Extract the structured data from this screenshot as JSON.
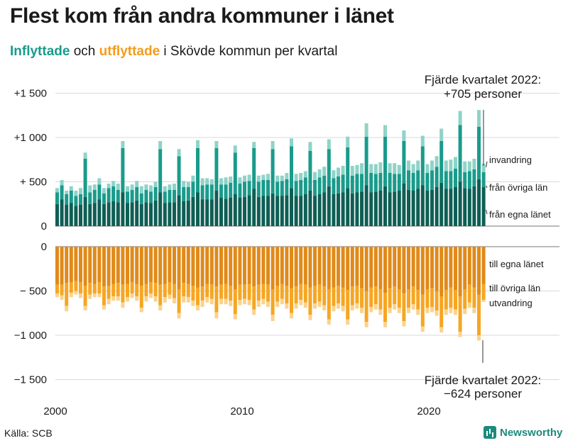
{
  "title": "Flest kom från andra kommuner i länet",
  "subtitle": {
    "in_word": "Inflyttade",
    "mid": " och ",
    "out_word": "utflyttade",
    "rest": " i Skövde kommun per kvartal"
  },
  "source": "Källa: SCB",
  "brand": "Newsworthy",
  "colors": {
    "in_own_county": "#0f5e55",
    "in_other_county": "#1a9b8b",
    "in_immigration": "#8fd3c8",
    "out_own_county": "#e08a1a",
    "out_other_county": "#f6a623",
    "out_emigration": "#fad38e",
    "grid": "#d9d9d9"
  },
  "chart_data": {
    "type": "bar",
    "stacked": true,
    "unit": "personer",
    "x_tick_labels": [
      "2000",
      "2010",
      "2020"
    ],
    "top_panel": {
      "y_ticks": [
        0,
        500,
        1000,
        1500
      ],
      "y_tick_labels": [
        "0",
        "+  500",
        "+1 000",
        "+1 500"
      ],
      "ylim": [
        0,
        1500
      ],
      "series_names": [
        "från egna länet",
        "från övriga län",
        "invandring"
      ],
      "annotation": {
        "line1": "Fjärde kvartalet 2022:",
        "line2": "+705 personer"
      }
    },
    "bottom_panel": {
      "y_ticks": [
        0,
        -500,
        -1000,
        -1500
      ],
      "y_tick_labels": [
        "0",
        "−  500",
        "−1 000",
        "−1 500"
      ],
      "ylim": [
        -1500,
        0
      ],
      "series_names": [
        "till egna länet",
        "till övriga län",
        "utvandring"
      ],
      "annotation": {
        "line1": "Fjärde kvartalet 2022:",
        "line2": "−624 personer"
      }
    },
    "quarters": [
      "2000Q1",
      "2000Q2",
      "2000Q3",
      "2000Q4",
      "2001Q1",
      "2001Q2",
      "2001Q3",
      "2001Q4",
      "2002Q1",
      "2002Q2",
      "2002Q3",
      "2002Q4",
      "2003Q1",
      "2003Q2",
      "2003Q3",
      "2003Q4",
      "2004Q1",
      "2004Q2",
      "2004Q3",
      "2004Q4",
      "2005Q1",
      "2005Q2",
      "2005Q3",
      "2005Q4",
      "2006Q1",
      "2006Q2",
      "2006Q3",
      "2006Q4",
      "2007Q1",
      "2007Q2",
      "2007Q3",
      "2007Q4",
      "2008Q1",
      "2008Q2",
      "2008Q3",
      "2008Q4",
      "2009Q1",
      "2009Q2",
      "2009Q3",
      "2009Q4",
      "2010Q1",
      "2010Q2",
      "2010Q3",
      "2010Q4",
      "2011Q1",
      "2011Q2",
      "2011Q3",
      "2011Q4",
      "2012Q1",
      "2012Q2",
      "2012Q3",
      "2012Q4",
      "2013Q1",
      "2013Q2",
      "2013Q3",
      "2013Q4",
      "2014Q1",
      "2014Q2",
      "2014Q3",
      "2014Q4",
      "2015Q1",
      "2015Q2",
      "2015Q3",
      "2015Q4",
      "2016Q1",
      "2016Q2",
      "2016Q3",
      "2016Q4",
      "2017Q1",
      "2017Q2",
      "2017Q3",
      "2017Q4",
      "2018Q1",
      "2018Q2",
      "2018Q3",
      "2018Q4",
      "2019Q1",
      "2019Q2",
      "2019Q3",
      "2019Q4",
      "2020Q1",
      "2020Q2",
      "2020Q3",
      "2020Q4",
      "2021Q1",
      "2021Q2",
      "2021Q3",
      "2021Q4",
      "2022Q1",
      "2022Q2",
      "2022Q3",
      "2022Q4"
    ],
    "in_own_county": [
      250,
      300,
      240,
      260,
      230,
      240,
      330,
      250,
      260,
      300,
      250,
      270,
      280,
      270,
      380,
      260,
      270,
      290,
      250,
      270,
      260,
      290,
      380,
      260,
      270,
      270,
      350,
      280,
      290,
      330,
      380,
      300,
      300,
      300,
      400,
      320,
      310,
      320,
      360,
      320,
      330,
      350,
      420,
      330,
      340,
      340,
      370,
      340,
      340,
      350,
      430,
      340,
      340,
      360,
      400,
      340,
      360,
      380,
      450,
      360,
      370,
      380,
      430,
      370,
      380,
      390,
      460,
      380,
      390,
      400,
      450,
      380,
      390,
      400,
      480,
      410,
      400,
      420,
      460,
      400,
      410,
      440,
      490,
      420,
      420,
      440,
      500,
      430,
      420,
      450,
      530,
      440
    ],
    "in_other_county": [
      130,
      160,
      120,
      140,
      110,
      120,
      430,
      130,
      150,
      170,
      120,
      160,
      170,
      140,
      500,
      130,
      140,
      150,
      120,
      140,
      130,
      150,
      490,
      130,
      140,
      140,
      440,
      160,
      150,
      170,
      500,
      160,
      170,
      170,
      480,
      150,
      160,
      170,
      470,
      160,
      170,
      160,
      460,
      170,
      180,
      180,
      500,
      160,
      170,
      180,
      470,
      170,
      180,
      190,
      450,
      180,
      190,
      190,
      420,
      180,
      190,
      200,
      460,
      200,
      210,
      200,
      550,
      220,
      200,
      200,
      560,
      220,
      200,
      190,
      480,
      220,
      200,
      210,
      440,
      200,
      220,
      230,
      470,
      200,
      200,
      210,
      640,
      180,
      200,
      190,
      590,
      170
    ],
    "in_immigration": [
      50,
      60,
      40,
      50,
      60,
      70,
      70,
      80,
      60,
      70,
      60,
      50,
      60,
      70,
      80,
      60,
      60,
      70,
      80,
      60,
      70,
      60,
      90,
      60,
      60,
      70,
      80,
      70,
      60,
      70,
      90,
      80,
      70,
      60,
      80,
      70,
      80,
      70,
      80,
      70,
      70,
      70,
      70,
      70,
      60,
      70,
      90,
      70,
      60,
      70,
      90,
      80,
      80,
      70,
      100,
      90,
      90,
      100,
      110,
      90,
      100,
      100,
      120,
      110,
      100,
      120,
      150,
      100,
      110,
      120,
      130,
      110,
      120,
      100,
      120,
      110,
      100,
      110,
      120,
      100,
      110,
      120,
      140,
      120,
      130,
      130,
      160,
      120,
      110,
      120,
      190,
      95
    ],
    "out_own_county": [
      430,
      430,
      410,
      400,
      390,
      400,
      440,
      410,
      420,
      400,
      450,
      440,
      420,
      410,
      430,
      420,
      400,
      420,
      440,
      420,
      400,
      410,
      430,
      420,
      400,
      420,
      480,
      410,
      420,
      440,
      460,
      450,
      420,
      430,
      450,
      430,
      420,
      440,
      480,
      430,
      430,
      420,
      450,
      430,
      420,
      430,
      480,
      440,
      420,
      440,
      470,
      450,
      420,
      430,
      460,
      440,
      430,
      450,
      480,
      460,
      440,
      460,
      490,
      450,
      440,
      470,
      500,
      460,
      450,
      480,
      520,
      470,
      450,
      480,
      530,
      480,
      450,
      490,
      540,
      480,
      470,
      500,
      560,
      490,
      460,
      490,
      560,
      480,
      430,
      460,
      540,
      420
    ],
    "out_other_county": [
      100,
      120,
      260,
      120,
      110,
      130,
      230,
      130,
      110,
      130,
      210,
      150,
      140,
      150,
      200,
      150,
      130,
      140,
      250,
      140,
      130,
      150,
      230,
      150,
      140,
      160,
      270,
      150,
      150,
      170,
      200,
      160,
      150,
      160,
      290,
      160,
      170,
      170,
      280,
      170,
      160,
      180,
      260,
      180,
      170,
      190,
      290,
      180,
      170,
      200,
      280,
      190,
      180,
      200,
      310,
      200,
      190,
      210,
      340,
      210,
      200,
      210,
      330,
      210,
      200,
      220,
      350,
      220,
      200,
      230,
      330,
      220,
      200,
      210,
      310,
      210,
      200,
      220,
      360,
      210,
      210,
      220,
      350,
      220,
      230,
      220,
      400,
      220,
      200,
      230,
      460,
      180
    ],
    "out_emigration": [
      40,
      50,
      60,
      50,
      40,
      50,
      50,
      50,
      40,
      40,
      50,
      60,
      50,
      50,
      60,
      50,
      50,
      50,
      50,
      60,
      50,
      60,
      60,
      60,
      50,
      60,
      60,
      70,
      60,
      60,
      60,
      70,
      60,
      60,
      70,
      60,
      60,
      60,
      60,
      60,
      60,
      60,
      60,
      70,
      60,
      60,
      70,
      60,
      60,
      60,
      60,
      60,
      60,
      60,
      60,
      60,
      60,
      60,
      60,
      60,
      60,
      60,
      60,
      60,
      60,
      60,
      60,
      60,
      60,
      60,
      60,
      60,
      60,
      60,
      60,
      60,
      60,
      60,
      60,
      60,
      60,
      60,
      60,
      60,
      60,
      60,
      60,
      60,
      60,
      60,
      60,
      24
    ]
  }
}
